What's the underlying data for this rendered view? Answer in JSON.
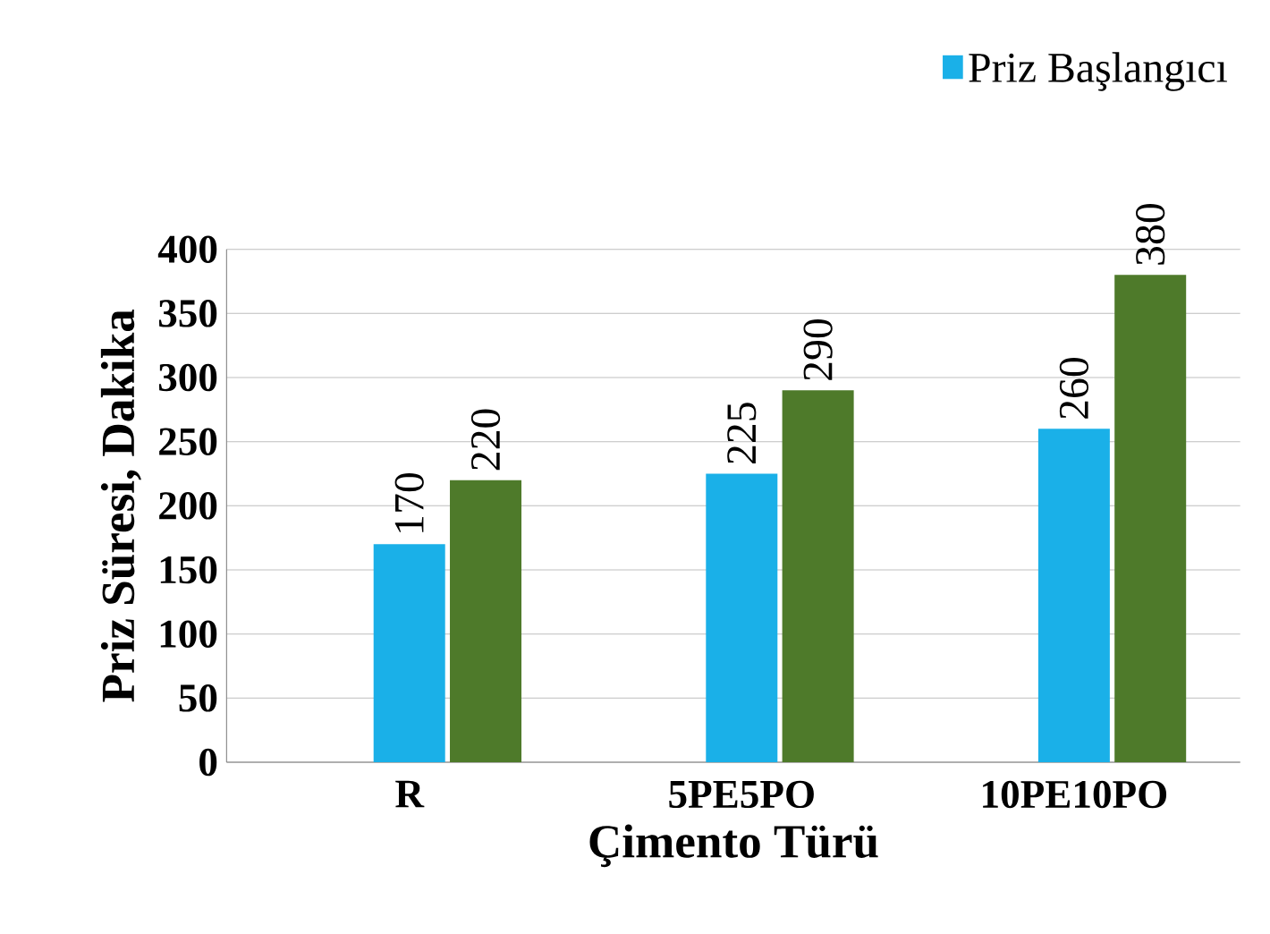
{
  "chart_data": {
    "type": "bar",
    "xlabel": "Çimento Türü",
    "ylabel": "Priz Süresi, Dakika",
    "categories": [
      "R",
      "5PE5PO",
      "10PE10PO"
    ],
    "series": [
      {
        "name": "Priz Başlangıcı",
        "color": "#1ab0e8",
        "values": [
          170,
          225,
          260
        ]
      },
      {
        "color": "#4e7a2a",
        "values": [
          220,
          290,
          380
        ]
      }
    ],
    "ylim": [
      0,
      400
    ],
    "yticks": [
      0,
      50,
      100,
      150,
      200,
      250,
      300,
      350,
      400
    ],
    "grid": "y",
    "legend": "top right",
    "data_labels": true
  }
}
